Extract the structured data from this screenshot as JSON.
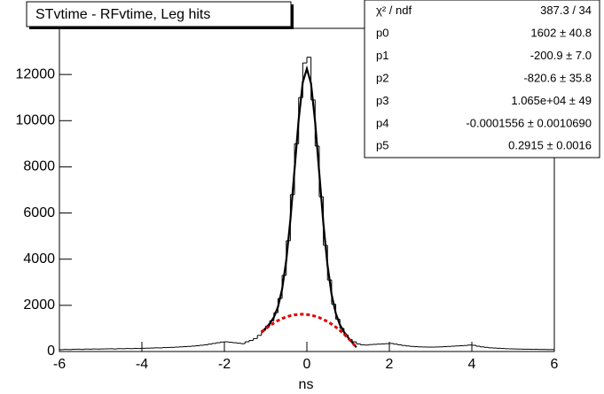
{
  "chart_data": {
    "type": "histogram",
    "title": "STvtime - RFvtime, Leg hits",
    "xlabel": "ns",
    "bins": [
      -6,
      -5.9,
      -5.8,
      -5.7,
      -5.6,
      -5.5,
      -5.4,
      -5.3,
      -5.2,
      -5.1,
      -5,
      -4.9,
      -4.8,
      -4.7,
      -4.6,
      -4.5,
      -4.4,
      -4.3,
      -4.2,
      -4.1,
      -4,
      -3.9,
      -3.8,
      -3.7,
      -3.6,
      -3.5,
      -3.4,
      -3.3,
      -3.2,
      -3.1,
      -3,
      -2.9,
      -2.8,
      -2.7,
      -2.6,
      -2.5,
      -2.4,
      -2.3,
      -2.2,
      -2.1,
      -2,
      -1.9,
      -1.8,
      -1.7,
      -1.6,
      -1.5,
      -1.4,
      -1.3,
      -1.2,
      -1.1,
      -1,
      -0.9,
      -0.8,
      -0.7,
      -0.6,
      -0.5,
      -0.4,
      -0.3,
      -0.2,
      -0.1,
      0,
      0.1,
      0.2,
      0.3,
      0.4,
      0.5,
      0.6,
      0.7,
      0.8,
      0.9,
      1,
      1.1,
      1.2,
      1.3,
      1.4,
      1.5,
      1.6,
      1.7,
      1.8,
      1.9,
      2,
      2.1,
      2.2,
      2.3,
      2.4,
      2.5,
      2.6,
      2.7,
      2.8,
      2.9,
      3,
      3.1,
      3.2,
      3.3,
      3.4,
      3.5,
      3.6,
      3.7,
      3.8,
      3.9,
      4,
      4.1,
      4.2,
      4.3,
      4.4,
      4.5,
      4.6,
      4.7,
      4.8,
      4.9,
      5,
      5.1,
      5.2,
      5.3,
      5.4,
      5.5,
      5.6,
      5.7,
      5.8,
      5.9,
      6
    ],
    "values": [
      80,
      90,
      85,
      95,
      100,
      90,
      105,
      100,
      110,
      105,
      110,
      115,
      120,
      110,
      125,
      120,
      130,
      125,
      135,
      130,
      140,
      145,
      150,
      160,
      155,
      170,
      175,
      180,
      190,
      200,
      210,
      220,
      235,
      250,
      270,
      290,
      320,
      350,
      380,
      410,
      420,
      400,
      380,
      360,
      340,
      420,
      480,
      560,
      700,
      920,
      1100,
      1330,
      1680,
      2300,
      3300,
      4800,
      6800,
      9000,
      11000,
      12500,
      12750,
      10900,
      8900,
      6700,
      4600,
      3100,
      2050,
      1400,
      1000,
      720,
      520,
      420,
      330,
      290,
      280,
      300,
      310,
      320,
      330,
      340,
      350,
      320,
      290,
      260,
      240,
      220,
      210,
      200,
      195,
      190,
      190,
      195,
      200,
      210,
      220,
      230,
      240,
      250,
      260,
      280,
      270,
      230,
      200,
      180,
      160,
      150,
      140,
      130,
      120,
      115,
      110,
      105,
      100,
      100,
      95,
      95,
      90,
      90,
      85,
      85
    ],
    "color": "#000000",
    "curve_x": [
      -1.1,
      -1,
      -0.9,
      -0.8,
      -0.7,
      -0.6,
      -0.5,
      -0.4,
      -0.3,
      -0.2,
      -0.1,
      0,
      0.1,
      0.2,
      0.3,
      0.4,
      0.5,
      0.6,
      0.7,
      0.8,
      0.9,
      1,
      1.1,
      1.2
    ],
    "curves": [
      {
        "color": "#000000",
        "style": "solid",
        "values": [
          839,
          1012,
          1209,
          1484,
          1936,
          2708,
          3943,
          5705,
          7860,
          10026,
          11656,
          12252,
          11616,
          9946,
          7740,
          5544,
          3742,
          2467,
          1654,
          1162,
          847,
          610,
          397,
          181
        ]
      },
      {
        "color": "#e00000",
        "style": "dashed",
        "values": [
          830,
          982,
          1118,
          1238,
          1341,
          1427,
          1497,
          1551,
          1588,
          1609,
          1614,
          1602,
          1574,
          1529,
          1468,
          1390,
          1296,
          1186,
          1059,
          916,
          756,
          580,
          388,
          179
        ]
      }
    ],
    "xlim": [
      -6,
      6
    ],
    "xticks": [
      -6,
      -4,
      -2,
      0,
      2,
      4,
      6
    ],
    "ylim": [
      0,
      14000
    ],
    "yticks": [
      0,
      2000,
      4000,
      6000,
      8000,
      10000,
      12000
    ],
    "stats": [
      {
        "label": "χ² / ndf",
        "value": "387.3 / 34"
      },
      {
        "label": "p0",
        "value": "1602 ± 40.8"
      },
      {
        "label": "p1",
        "value": "-200.9 ± 7.0"
      },
      {
        "label": "p2",
        "value": "-820.6 ± 35.8"
      },
      {
        "label": "p3",
        "value": "1.065e+04 ± 49"
      },
      {
        "label": "p4",
        "value": "-0.0001556 ± 0.0010690"
      },
      {
        "label": "p5",
        "value": "0.2915 ± 0.0016"
      }
    ]
  }
}
